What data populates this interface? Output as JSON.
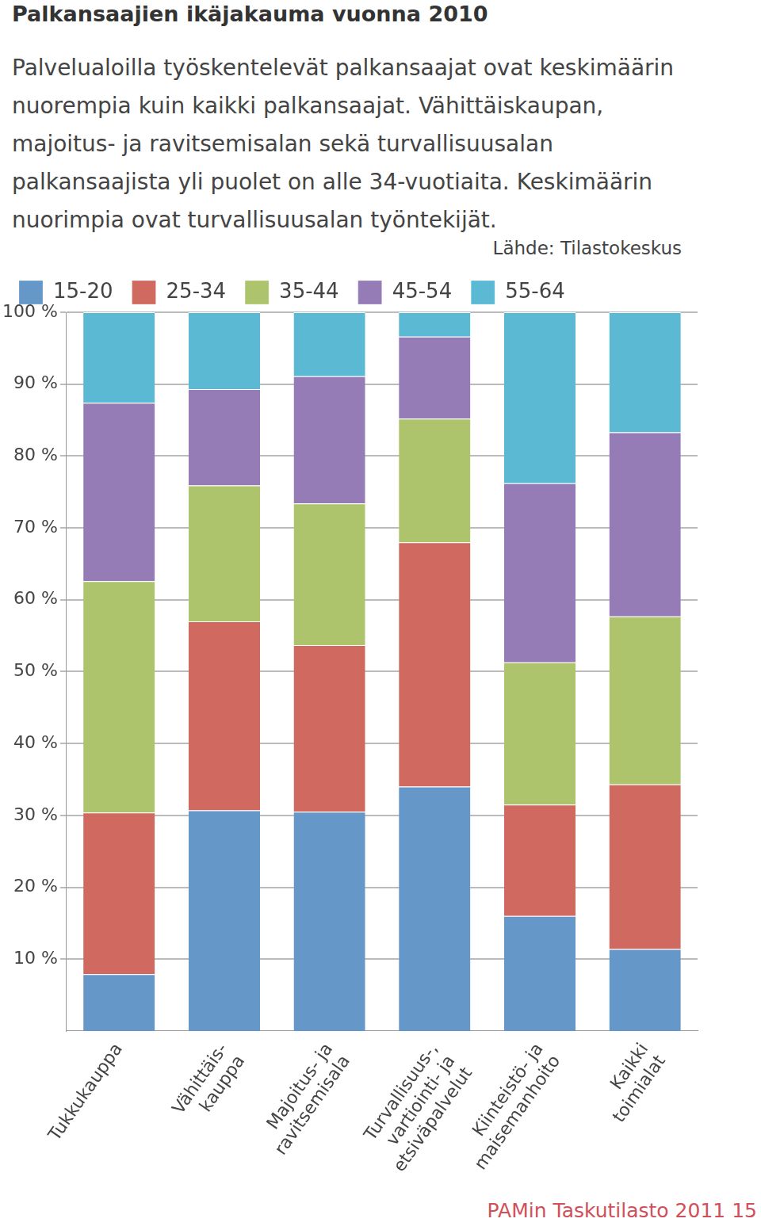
{
  "chart_data": {
    "type": "bar",
    "title": "Palkansaajien ikäjakauma vuonna 2010",
    "subtitle": "Palvelualoilla työskentelevät palkansaajat ovat keskimäärin nuorempia kuin kaikki palkansaajat. Vähittäiskaupan, majoitus- ja ravitsemisalan sekä turvallisuusalan palkansaajista yli puolet on alle 34-vuotiaita. Keskimäärin nuorimpia ovat turvallisuusalan työntekijät.",
    "annotations": [
      "Lähde: Tilastokeskus",
      "PAMin Taskutilasto 2011 15"
    ],
    "categories": [
      [
        "Tukkukauppa"
      ],
      [
        "Vähittäis-",
        "kauppa"
      ],
      [
        "Majoitus- ja",
        "ravitsemisala"
      ],
      [
        "Turvallisuus-,",
        "vartiointi- ja",
        "etsiväpalvelut"
      ],
      [
        "Kiinteistö- ja",
        "maisemanhoito"
      ],
      [
        "Kaikki",
        "toimialat"
      ]
    ],
    "series": [
      {
        "name": "15-20",
        "color": "#6597c9",
        "values": [
          7.9,
          30.7,
          30.5,
          34.0,
          16.0,
          11.4
        ]
      },
      {
        "name": "25-34",
        "color": "#d06a60",
        "values": [
          22.5,
          26.3,
          23.2,
          34.0,
          15.5,
          22.9
        ]
      },
      {
        "name": "35-44",
        "color": "#adc46c",
        "values": [
          32.2,
          18.9,
          19.7,
          17.2,
          19.8,
          23.4
        ]
      },
      {
        "name": "45-54",
        "color": "#967cb6",
        "values": [
          24.8,
          13.4,
          17.7,
          11.4,
          24.9,
          25.6
        ]
      },
      {
        "name": "55-64",
        "color": "#5bb9d3",
        "values": [
          12.6,
          10.7,
          8.9,
          3.4,
          23.8,
          16.7
        ]
      }
    ],
    "stacked": true,
    "grid": true,
    "legend": "top-left",
    "ylim": [
      0,
      100
    ],
    "yticks": [
      {
        "value": 10,
        "label": "10 %"
      },
      {
        "value": 20,
        "label": "20 %"
      },
      {
        "value": 30,
        "label": "30 %"
      },
      {
        "value": 40,
        "label": "40 %"
      },
      {
        "value": 50,
        "label": "50 %"
      },
      {
        "value": 60,
        "label": "60 %"
      },
      {
        "value": 70,
        "label": "70 %"
      },
      {
        "value": 80,
        "label": "80 %"
      },
      {
        "value": 90,
        "label": "90 %"
      },
      {
        "value": 100,
        "label": "100 %"
      }
    ]
  }
}
